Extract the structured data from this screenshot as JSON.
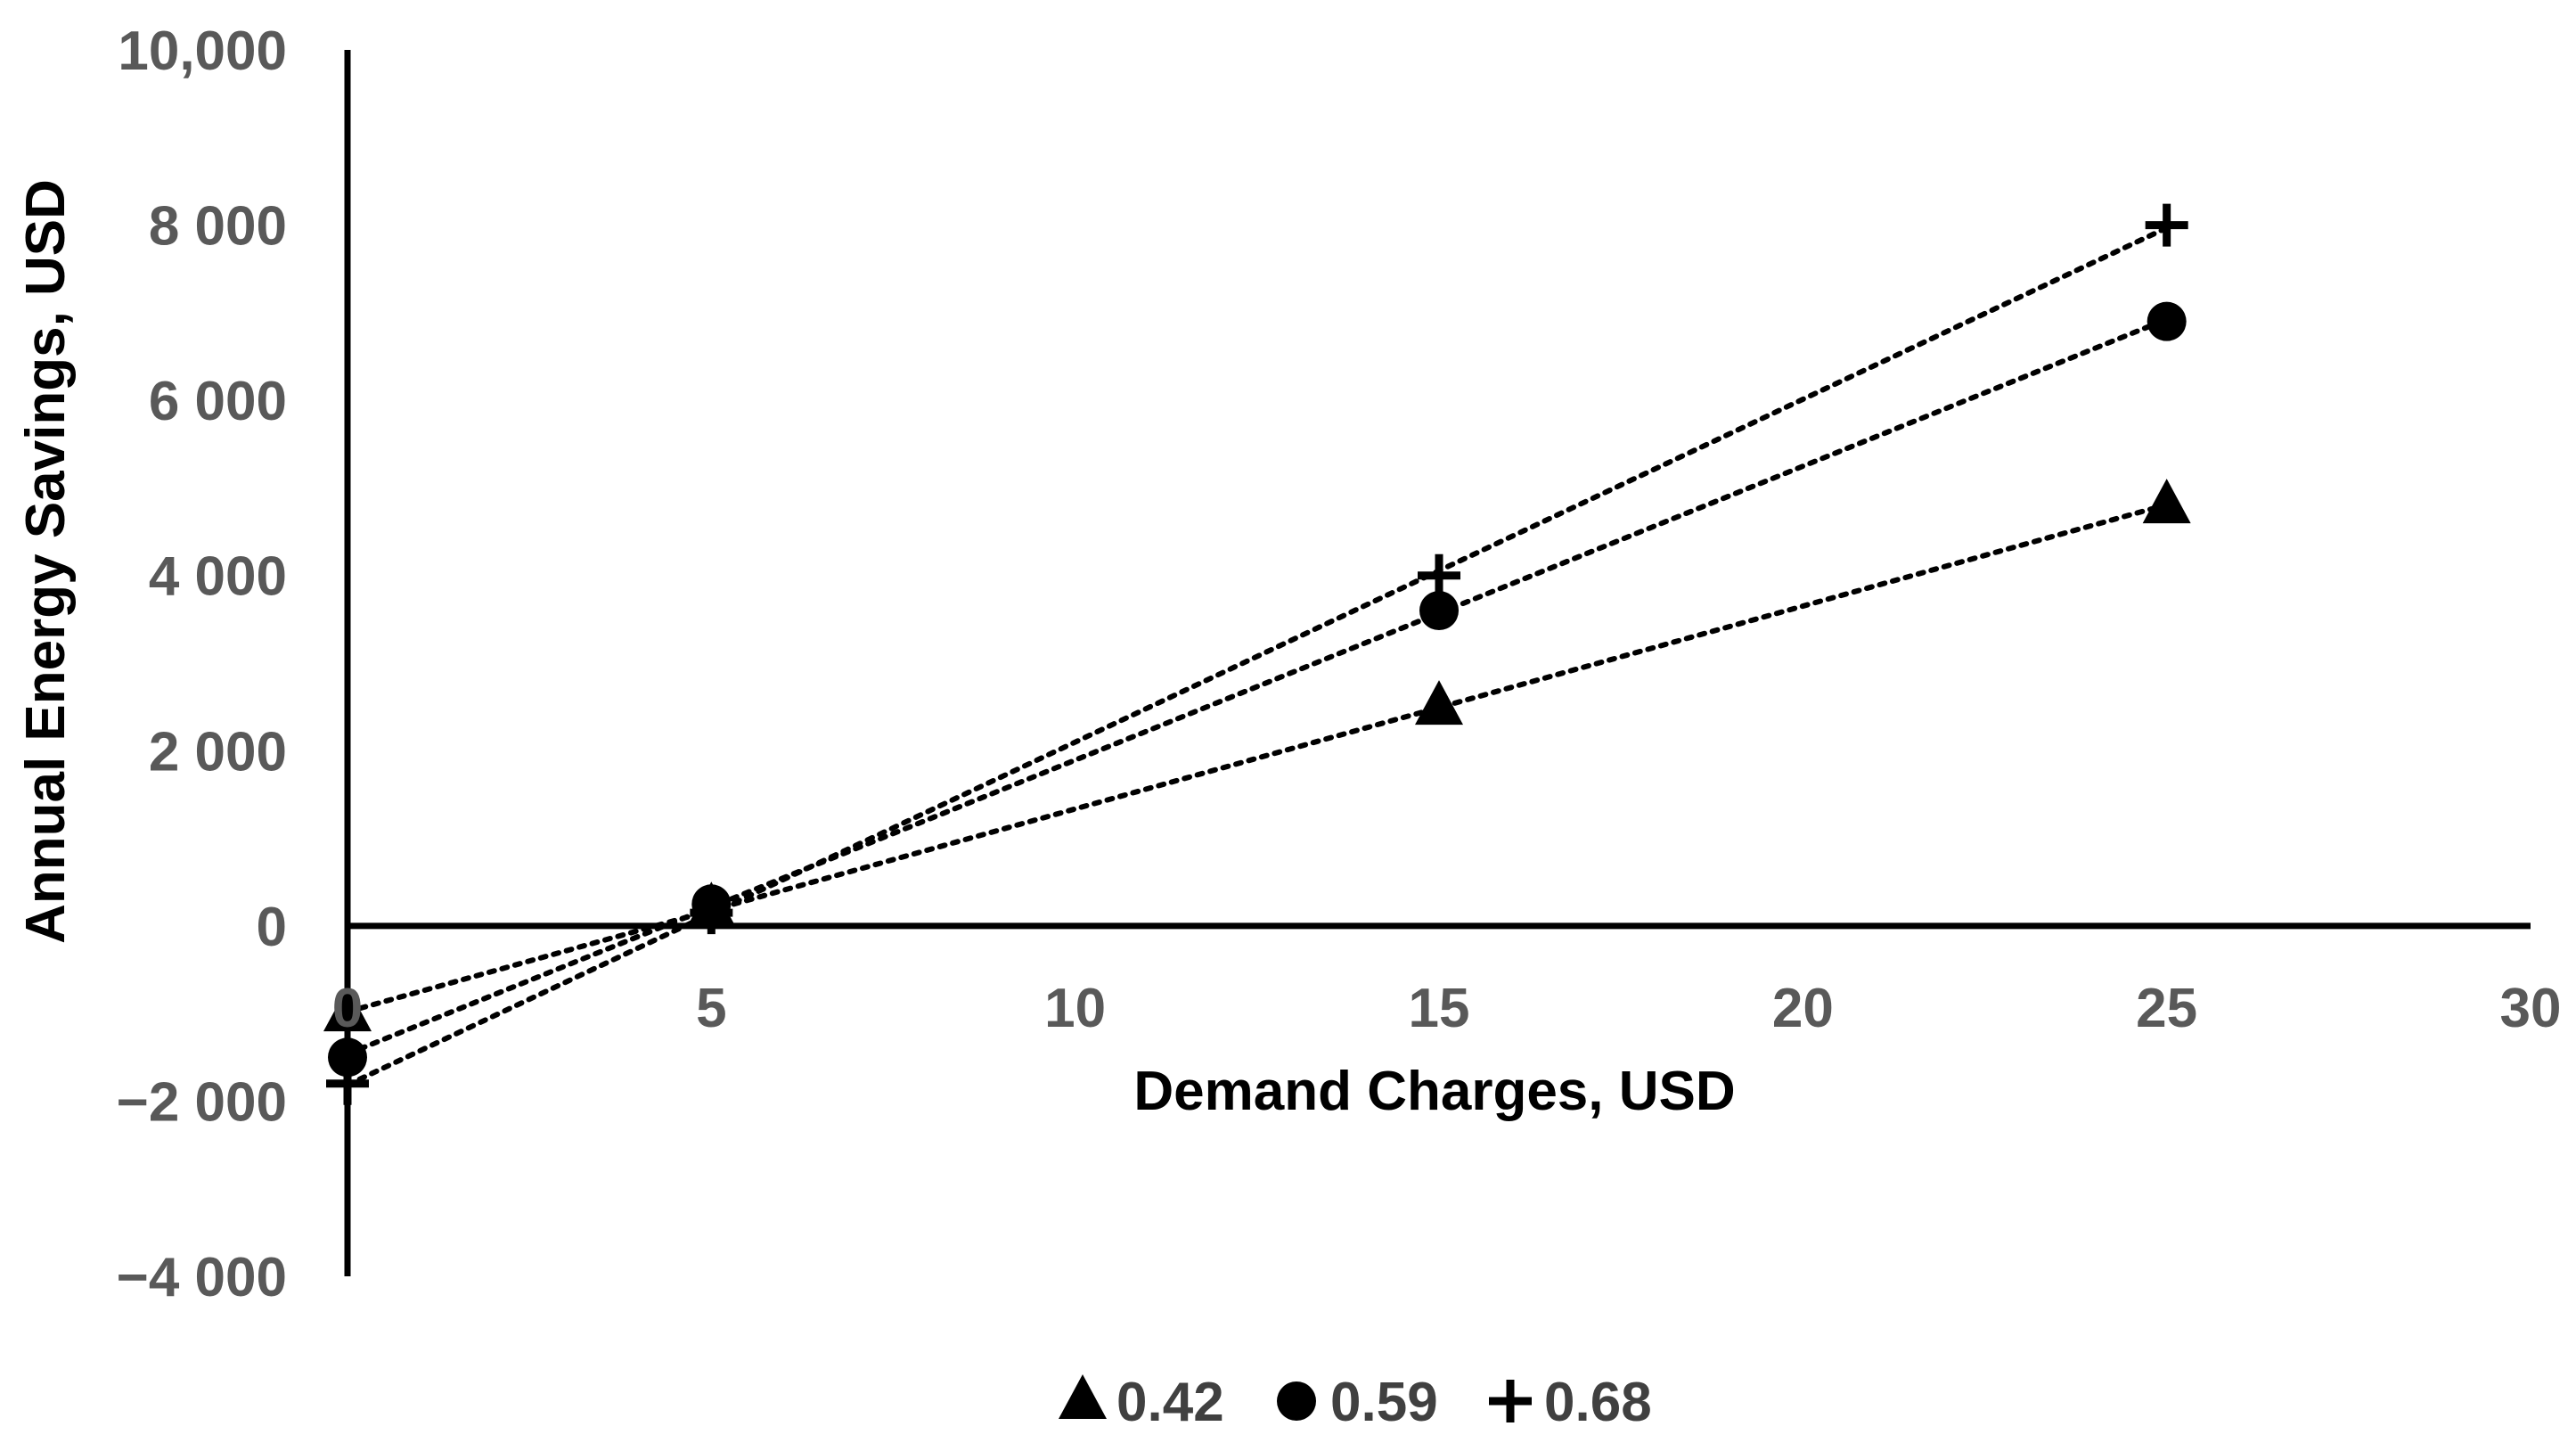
{
  "chart_data": {
    "type": "scatter",
    "xlabel": "Demand Charges, USD",
    "ylabel": "Annual Energy Savings, USD",
    "xlim": [
      0,
      30
    ],
    "ylim": [
      -4000,
      10000
    ],
    "x_ticks": [
      0,
      5,
      10,
      15,
      20,
      25,
      30
    ],
    "x_tick_labels": [
      "0",
      "5",
      "10",
      "15",
      "20",
      "25",
      "30"
    ],
    "y_ticks": [
      10000,
      8000,
      6000,
      4000,
      2000,
      0,
      -2000,
      -4000
    ],
    "y_tick_labels": [
      "10,000",
      "8 000",
      "6 000",
      "4 000",
      "2 000",
      "0",
      "−2 000",
      "−4 000"
    ],
    "grid": false,
    "legend_position": "bottom",
    "trendlines": "linear, dotted",
    "series": [
      {
        "name": "0.42",
        "marker": "triangle",
        "color": "#000000",
        "x": [
          0,
          5,
          15,
          25
        ],
        "y": [
          -1000,
          200,
          2500,
          4800
        ]
      },
      {
        "name": "0.59",
        "marker": "circle",
        "color": "#000000",
        "x": [
          0,
          5,
          15,
          25
        ],
        "y": [
          -1500,
          250,
          3600,
          6900
        ]
      },
      {
        "name": "0.68",
        "marker": "plus",
        "color": "#000000",
        "x": [
          0,
          5,
          15,
          25
        ],
        "y": [
          -1800,
          150,
          4000,
          8000
        ]
      }
    ]
  }
}
